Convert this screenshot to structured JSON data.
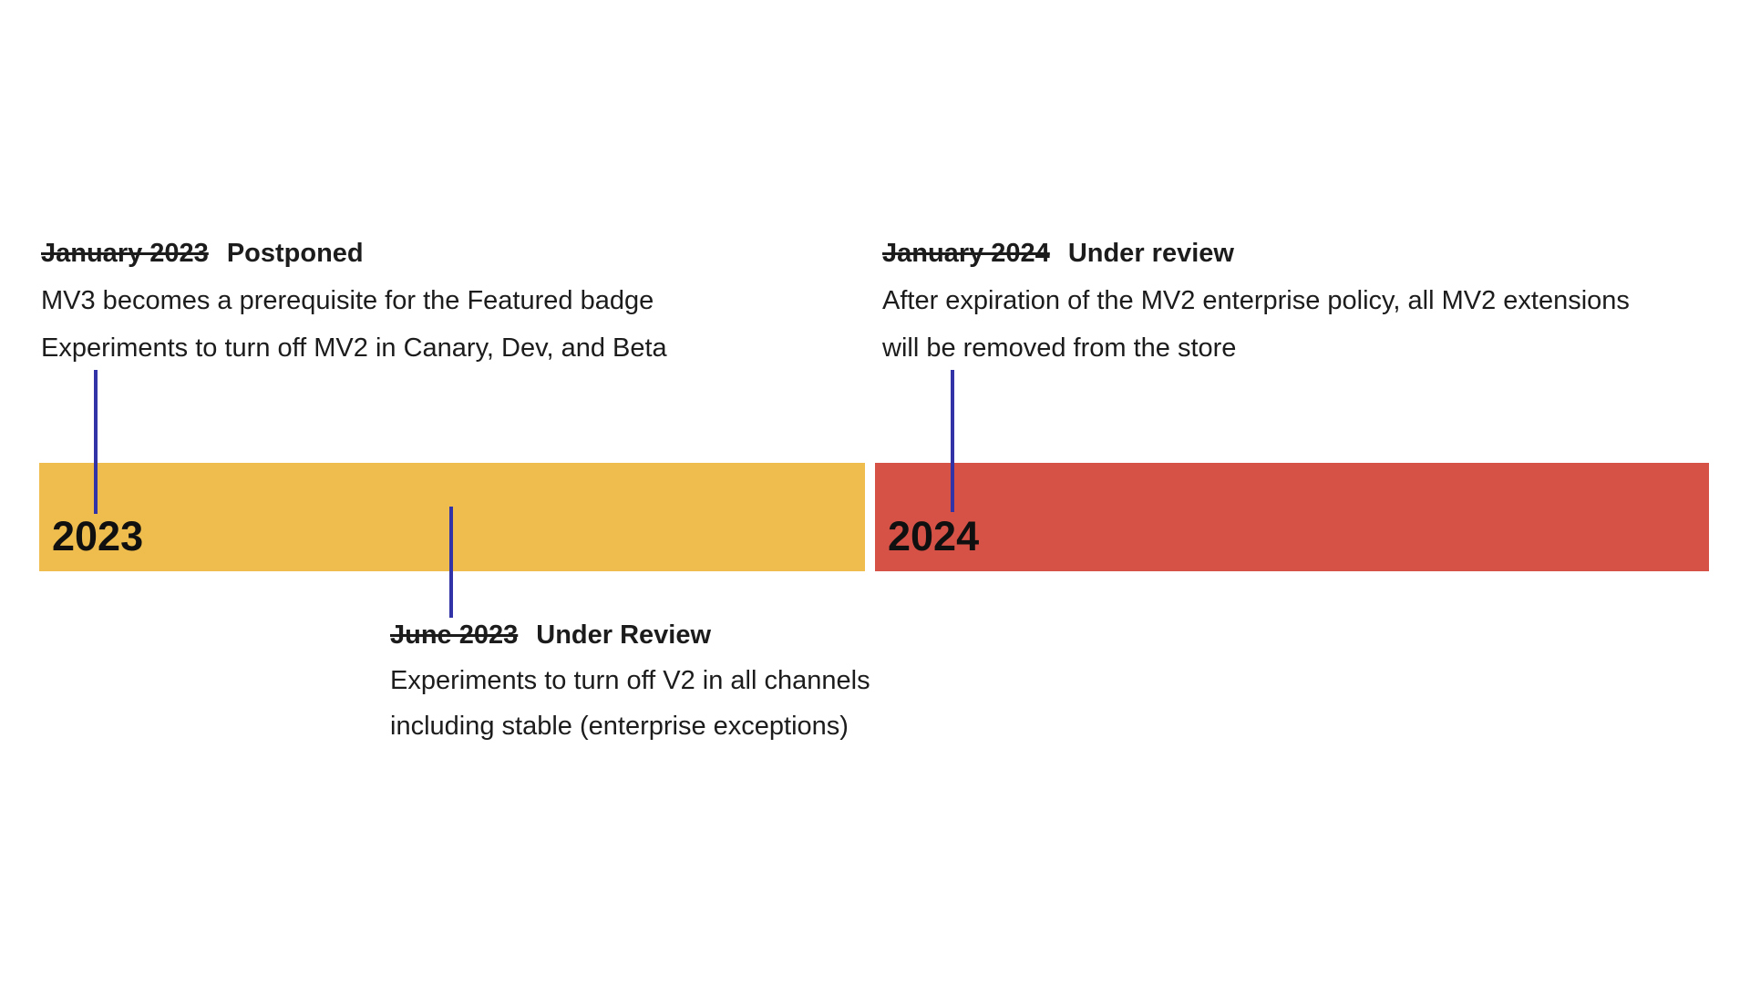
{
  "page": {
    "background": "#ffffff",
    "text_color": "#1c1c1c"
  },
  "timeline": {
    "connector_color": "#3333A8",
    "bars": [
      {
        "label": "2023",
        "color": "#EEBD4D"
      },
      {
        "label": "2024",
        "color": "#D65246"
      }
    ]
  },
  "milestones": [
    {
      "date": "January 2023",
      "status": "Postponed",
      "lines": [
        "MV3 becomes a prerequisite for the Featured badge",
        "Experiments to turn off MV2 in Canary, Dev, and Beta"
      ]
    },
    {
      "date": "June 2023",
      "status": "Under Review",
      "lines": [
        "Experiments to turn off V2 in all channels",
        "including stable (enterprise exceptions)"
      ]
    },
    {
      "date": "January 2024",
      "status": "Under review",
      "lines": [
        "After expiration of the MV2 enterprise policy, all MV2 extensions",
        "will be removed from the store"
      ]
    }
  ]
}
